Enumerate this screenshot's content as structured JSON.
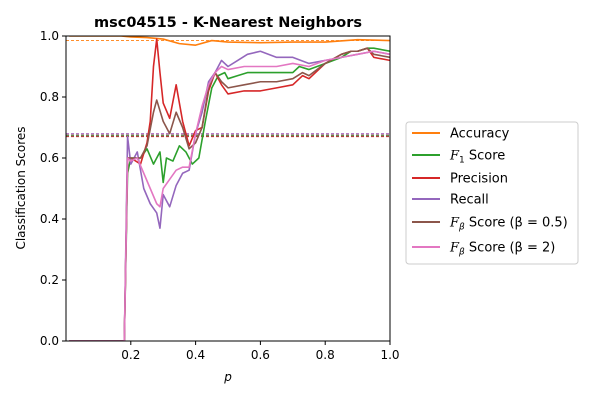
{
  "chart_data": {
    "type": "line",
    "title": "msc04515 - K-Nearest Neighbors",
    "xlabel": "p",
    "ylabel": "Classification Scores",
    "xlim": [
      0.0,
      1.0
    ],
    "ylim": [
      0.0,
      1.0
    ],
    "x_ticks": [
      "0.2",
      "0.4",
      "0.6",
      "0.8",
      "1.0"
    ],
    "y_ticks": [
      "0.0",
      "0.2",
      "0.4",
      "0.6",
      "0.8",
      "1.0"
    ],
    "grid": false,
    "legend_position": "right-outside",
    "series": [
      {
        "name": "Accuracy",
        "color": "#ff7f0e",
        "points": [
          [
            0.01,
            1.0
          ],
          [
            0.17,
            1.0
          ],
          [
            0.2,
            0.997
          ],
          [
            0.25,
            0.995
          ],
          [
            0.3,
            0.99
          ],
          [
            0.35,
            0.975
          ],
          [
            0.4,
            0.97
          ],
          [
            0.45,
            0.985
          ],
          [
            0.5,
            0.98
          ],
          [
            0.6,
            0.978
          ],
          [
            0.7,
            0.98
          ],
          [
            0.8,
            0.98
          ],
          [
            0.9,
            0.988
          ],
          [
            1.0,
            0.985
          ]
        ]
      },
      {
        "name": "F1 Score",
        "color": "#2ca02c",
        "points": [
          [
            0.01,
            0.0
          ],
          [
            0.17,
            0.0
          ],
          [
            0.18,
            0.0
          ],
          [
            0.19,
            0.55
          ],
          [
            0.2,
            0.6
          ],
          [
            0.23,
            0.6
          ],
          [
            0.25,
            0.63
          ],
          [
            0.27,
            0.58
          ],
          [
            0.29,
            0.62
          ],
          [
            0.3,
            0.52
          ],
          [
            0.31,
            0.6
          ],
          [
            0.33,
            0.59
          ],
          [
            0.35,
            0.64
          ],
          [
            0.37,
            0.62
          ],
          [
            0.39,
            0.58
          ],
          [
            0.41,
            0.6
          ],
          [
            0.43,
            0.72
          ],
          [
            0.45,
            0.83
          ],
          [
            0.47,
            0.87
          ],
          [
            0.49,
            0.88
          ],
          [
            0.5,
            0.86
          ],
          [
            0.53,
            0.87
          ],
          [
            0.56,
            0.88
          ],
          [
            0.6,
            0.88
          ],
          [
            0.65,
            0.88
          ],
          [
            0.7,
            0.88
          ],
          [
            0.72,
            0.9
          ],
          [
            0.75,
            0.89
          ],
          [
            0.8,
            0.91
          ],
          [
            0.85,
            0.93
          ],
          [
            0.88,
            0.95
          ],
          [
            0.9,
            0.95
          ],
          [
            0.93,
            0.96
          ],
          [
            0.95,
            0.96
          ],
          [
            1.0,
            0.95
          ]
        ]
      },
      {
        "name": "Precision",
        "color": "#d62728",
        "points": [
          [
            0.01,
            0.0
          ],
          [
            0.17,
            0.0
          ],
          [
            0.18,
            0.0
          ],
          [
            0.19,
            0.6
          ],
          [
            0.2,
            0.6
          ],
          [
            0.23,
            0.58
          ],
          [
            0.25,
            0.65
          ],
          [
            0.26,
            0.72
          ],
          [
            0.27,
            0.9
          ],
          [
            0.28,
            0.99
          ],
          [
            0.29,
            0.88
          ],
          [
            0.3,
            0.78
          ],
          [
            0.32,
            0.73
          ],
          [
            0.34,
            0.84
          ],
          [
            0.36,
            0.72
          ],
          [
            0.38,
            0.64
          ],
          [
            0.4,
            0.69
          ],
          [
            0.42,
            0.7
          ],
          [
            0.44,
            0.82
          ],
          [
            0.46,
            0.88
          ],
          [
            0.48,
            0.84
          ],
          [
            0.5,
            0.81
          ],
          [
            0.55,
            0.82
          ],
          [
            0.6,
            0.82
          ],
          [
            0.65,
            0.83
          ],
          [
            0.7,
            0.84
          ],
          [
            0.73,
            0.87
          ],
          [
            0.75,
            0.86
          ],
          [
            0.8,
            0.91
          ],
          [
            0.85,
            0.94
          ],
          [
            0.88,
            0.95
          ],
          [
            0.9,
            0.95
          ],
          [
            0.93,
            0.96
          ],
          [
            0.95,
            0.93
          ],
          [
            1.0,
            0.92
          ]
        ]
      },
      {
        "name": "Recall",
        "color": "#9467bd",
        "points": [
          [
            0.01,
            0.0
          ],
          [
            0.17,
            0.0
          ],
          [
            0.18,
            0.0
          ],
          [
            0.19,
            0.67
          ],
          [
            0.2,
            0.58
          ],
          [
            0.22,
            0.62
          ],
          [
            0.24,
            0.5
          ],
          [
            0.26,
            0.45
          ],
          [
            0.28,
            0.42
          ],
          [
            0.29,
            0.37
          ],
          [
            0.3,
            0.48
          ],
          [
            0.32,
            0.44
          ],
          [
            0.34,
            0.51
          ],
          [
            0.36,
            0.55
          ],
          [
            0.38,
            0.56
          ],
          [
            0.4,
            0.68
          ],
          [
            0.42,
            0.75
          ],
          [
            0.44,
            0.85
          ],
          [
            0.46,
            0.88
          ],
          [
            0.48,
            0.92
          ],
          [
            0.5,
            0.9
          ],
          [
            0.53,
            0.92
          ],
          [
            0.56,
            0.94
          ],
          [
            0.6,
            0.95
          ],
          [
            0.65,
            0.93
          ],
          [
            0.7,
            0.93
          ],
          [
            0.75,
            0.91
          ],
          [
            0.8,
            0.92
          ],
          [
            0.85,
            0.93
          ],
          [
            0.9,
            0.94
          ],
          [
            0.95,
            0.95
          ],
          [
            1.0,
            0.94
          ]
        ]
      },
      {
        "name": "Fβ Score (β = 0.5)",
        "color": "#8c564b",
        "points": [
          [
            0.01,
            0.0
          ],
          [
            0.17,
            0.0
          ],
          [
            0.18,
            0.0
          ],
          [
            0.19,
            0.6
          ],
          [
            0.2,
            0.6
          ],
          [
            0.23,
            0.6
          ],
          [
            0.25,
            0.64
          ],
          [
            0.27,
            0.75
          ],
          [
            0.28,
            0.79
          ],
          [
            0.3,
            0.72
          ],
          [
            0.32,
            0.68
          ],
          [
            0.34,
            0.75
          ],
          [
            0.36,
            0.7
          ],
          [
            0.38,
            0.63
          ],
          [
            0.4,
            0.65
          ],
          [
            0.42,
            0.7
          ],
          [
            0.44,
            0.83
          ],
          [
            0.46,
            0.88
          ],
          [
            0.48,
            0.85
          ],
          [
            0.5,
            0.83
          ],
          [
            0.55,
            0.84
          ],
          [
            0.6,
            0.85
          ],
          [
            0.65,
            0.85
          ],
          [
            0.7,
            0.86
          ],
          [
            0.73,
            0.88
          ],
          [
            0.75,
            0.87
          ],
          [
            0.8,
            0.91
          ],
          [
            0.85,
            0.94
          ],
          [
            0.88,
            0.95
          ],
          [
            0.9,
            0.95
          ],
          [
            0.93,
            0.96
          ],
          [
            0.95,
            0.94
          ],
          [
            1.0,
            0.93
          ]
        ]
      },
      {
        "name": "Fβ Score (β = 2)",
        "color": "#e377c2",
        "points": [
          [
            0.01,
            0.0
          ],
          [
            0.17,
            0.0
          ],
          [
            0.18,
            0.0
          ],
          [
            0.19,
            0.6
          ],
          [
            0.2,
            0.59
          ],
          [
            0.22,
            0.6
          ],
          [
            0.24,
            0.55
          ],
          [
            0.26,
            0.5
          ],
          [
            0.28,
            0.45
          ],
          [
            0.29,
            0.44
          ],
          [
            0.3,
            0.5
          ],
          [
            0.32,
            0.53
          ],
          [
            0.34,
            0.56
          ],
          [
            0.36,
            0.57
          ],
          [
            0.38,
            0.57
          ],
          [
            0.4,
            0.68
          ],
          [
            0.42,
            0.77
          ],
          [
            0.44,
            0.84
          ],
          [
            0.46,
            0.88
          ],
          [
            0.48,
            0.9
          ],
          [
            0.5,
            0.89
          ],
          [
            0.55,
            0.9
          ],
          [
            0.6,
            0.9
          ],
          [
            0.65,
            0.9
          ],
          [
            0.7,
            0.91
          ],
          [
            0.75,
            0.9
          ],
          [
            0.8,
            0.92
          ],
          [
            0.85,
            0.93
          ],
          [
            0.9,
            0.94
          ],
          [
            0.95,
            0.95
          ],
          [
            1.0,
            0.94
          ]
        ]
      }
    ],
    "reference_lines": [
      {
        "color": "#ff7f0e",
        "y": 0.985,
        "style": "dashed"
      },
      {
        "color": "#2ca02c",
        "y": 0.675,
        "style": "dashed"
      },
      {
        "color": "#d62728",
        "y": 0.67,
        "style": "dashed"
      },
      {
        "color": "#9467bd",
        "y": 0.68,
        "style": "dashed"
      },
      {
        "color": "#8c564b",
        "y": 0.672,
        "style": "dashed"
      },
      {
        "color": "#e377c2",
        "y": 0.678,
        "style": "dashed"
      }
    ],
    "legend": [
      {
        "label": "Accuracy",
        "color": "#ff7f0e",
        "kind": "text"
      },
      {
        "label": "Score",
        "color": "#2ca02c",
        "kind": "f1"
      },
      {
        "label": "Precision",
        "color": "#d62728",
        "kind": "text"
      },
      {
        "label": "Recall",
        "color": "#9467bd",
        "kind": "text"
      },
      {
        "label": "Score (β = 0.5)",
        "color": "#8c564b",
        "kind": "fbeta"
      },
      {
        "label": "Score (β = 2)",
        "color": "#e377c2",
        "kind": "fbeta"
      }
    ]
  }
}
